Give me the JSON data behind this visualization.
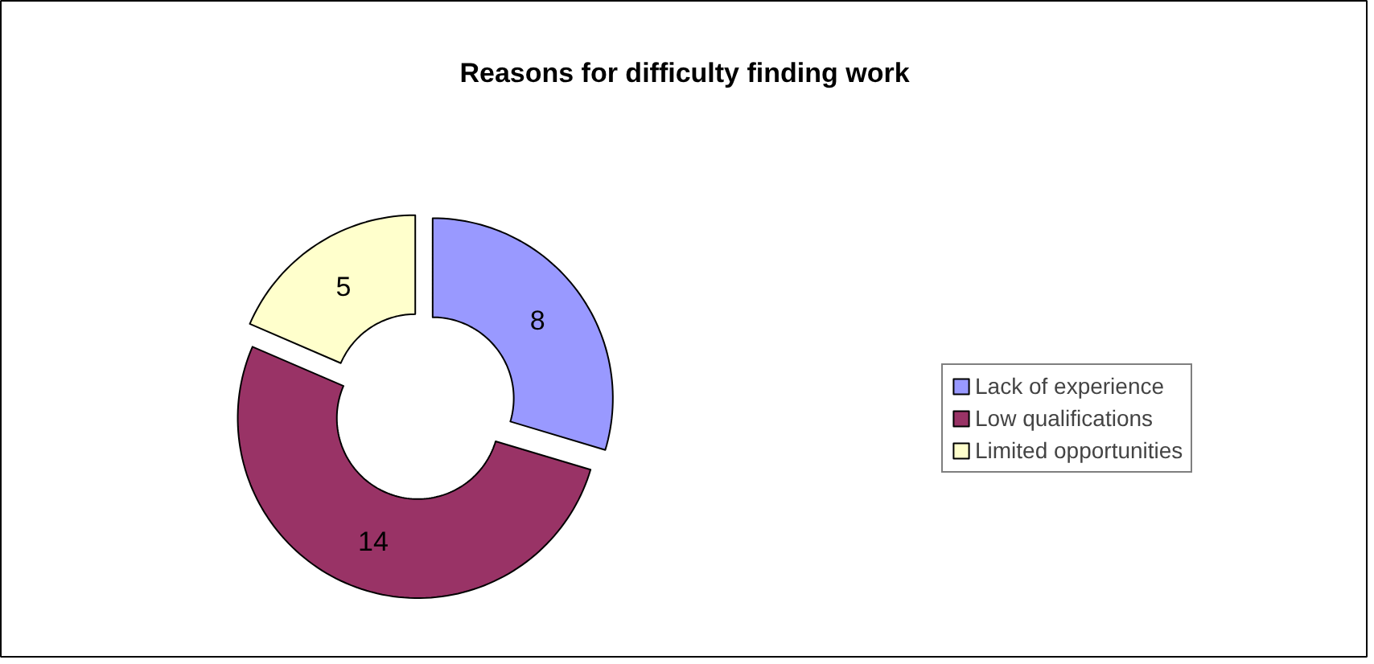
{
  "chart_data": {
    "type": "donut",
    "title": "Reasons for difficulty finding work",
    "categories": [
      "Lack of experience",
      "Low qualifications",
      "Limited opportunities"
    ],
    "values": [
      8,
      14,
      5
    ],
    "colors": [
      "#9999ff",
      "#993366",
      "#ffffcc"
    ],
    "data_labels": true,
    "legend": "right"
  }
}
